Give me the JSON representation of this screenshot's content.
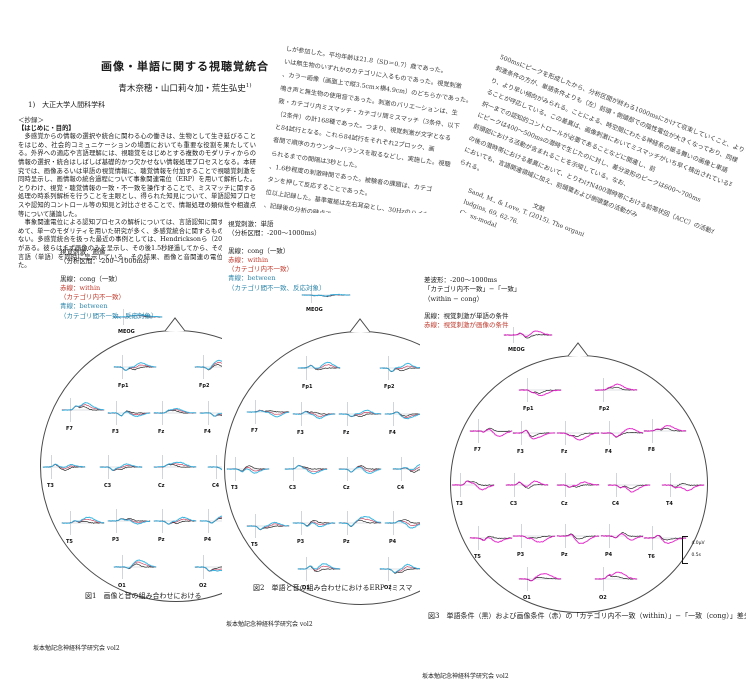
{
  "title": {
    "main": "画像・単語に関する視聴覚統合",
    "authors": "青木奈穂・山口莉々加・荒生弘史",
    "authors_sup": "1)",
    "affiliation": "1)　大正大学人間科学科"
  },
  "abstract": {
    "heading": "＜抄録＞",
    "subheading": "【はじめに・目的】",
    "p1": "　多感覚からの情報の選択や統合に関わる心の働きは、生物として生き延びることをはじめ、社会的コミュニケーションの場面においても重要な役割を果たしている。外界への適応や言語理解には、視聴覚をはじめとする複数のモダリティからの情報の選択・統合はしばしば基礎的かつ欠かせない情報処理プロセスとなる。本研究では、画像あるいは単語の視覚情報に、聴覚情報を付加することで視聴覚刺激を同時呈示し、画情報の統合過程について事象関連電位（ERP）を用いて解析した。とりわけ、視覚・聴覚情報の一致・不一致を操作することで、ミスマッチに関する処理の時系列解析を行うことを主眼とし、得られた知見について、単語認知プロセスや認知的コントロール等の知見と対比させることで、情報処理の類似性や相違点等について議論した。",
    "p2": "　事象関連電位による認知プロセスの解析については、言語認知に関するものも含めて、単一のモダリティを用いた研究が多く、多感覚統合に関するものは比較的少ない。多感覚統合を扱った最近の事例としては、Hendricksonら（2015）のものがある。彼らはまず画像のみを呈示し、その後1.5秒経過してから、その画像および言語（単語）を同時に呈示している。その結果、画像と音関連の電位が確認された。"
  },
  "methods_page": {
    "lines": [
      "しが参加した。平均年齢は21.8（SD＝0.7）歳であった。",
      "いは無生物のいずれかのカテゴリに入るものであった。視覚刺激",
      "、カラー画像（画面上で縦3.5cm×横4.9cm）のどちらかであった。",
      "鳴き声と無生物の使用音であった。刺激のバリエーションは、生",
      "致・カテゴリ内ミスマッチ・カテゴリ間ミスマッチ（3条件、以下",
      "（2条件）の計168種であった。つまり、視覚刺激が文字となる",
      "と84試行となる。これら84試行をそれぞれ2ブロック、画",
      "者間で順序のカウンターバランスを取るなどし、実施した。視聴",
      "られるまでの間隔は3秒とした。",
      "、1.6秒程度の刺激時間であった。被験者の課題は、カテゴ",
      "タンを押して反応することであった。",
      "位以上記録した。基準電極は左右耳朶とし、30Hzのハイカット処理を行った。",
      "、記録後の分析の時点で、300msにお"
    ]
  },
  "discussion_page": {
    "lines": [
      "500msにピークを形成したから、分析区間が終わる1000msにかけて収束していくこと、より速い",
      "刺激条件の方が、単語条件よりも（左）前頭・側頭部での陰性電位が大きくなっており、同様",
      "り、より早い傾向がみられる。ことによる、時空間にわたる神経系の振る舞いの画像と単語",
      "ることが呼応している。この差異は、画像刺激においてミスマッチがいち早く検出されている可能性があること、を",
      "択一までの認知的コントロールが必要であることなどに関連し、前",
      "にピークは400～500msの潜時で生じたのに対し、差分波形のピークは600～700ms",
      "前頭部における活動が含まれることを示唆している。なお、",
      "の後の潜時帯における差異において、とりわけN400潜時帯における前帯状回（ACC）の活動が、ERPに反映されていることを",
      "においても、言語関連領域に加え、前頭葉および側頭葉の活動がみ",
      "られる。"
    ],
    "references_heading": "文献",
    "reference_lines": [
      "Sand, M., & Love, T. (2015). The organi",
      "ludgins, 69, 62-76.",
      "Cross-modal"
    ]
  },
  "legends": {
    "fig1": {
      "stim": "視覚刺激：画像",
      "interval": "（分析区間：-200～1000ms）",
      "black": "黒線：cong（一致）",
      "red1": "赤線：within",
      "red2": "（カテゴリ内不一致）",
      "blue1": "青線：between",
      "blue2": "（カテゴリ間不一致、反応対象）"
    },
    "fig2": {
      "stim": "視覚刺激：単語",
      "interval": "（分析区間：-200～1000ms）",
      "black": "黒線：cong（一致）",
      "red1": "赤線：within",
      "red2": "（カテゴリ内不一致）",
      "blue1": "青線：between",
      "blue2": "（カテゴリ間不一致、反応対象）"
    },
    "fig3": {
      "line1": "差波形：-200～1000ms",
      "line2": "「カテゴリ内不一致」−「一致」",
      "line3": "（within − cong）",
      "black": "黒線：視覚刺激が単語の条件",
      "red": "赤線：視覚刺激が画像の条件"
    }
  },
  "figures": {
    "meog_label": "MEOG",
    "electrodes": [
      "Fp1",
      "Fp2",
      "F7",
      "F3",
      "Fz",
      "F4",
      "F8",
      "T3",
      "C3",
      "Cz",
      "C4",
      "T4",
      "T5",
      "P3",
      "Pz",
      "P4",
      "T6",
      "O1",
      "O2"
    ],
    "fig1": {
      "caption": "図1　画像と音の組み合わせにおける"
    },
    "fig2": {
      "caption": "図2　単語と音の組み合わせにおけるERP（ミスマ"
    },
    "fig3": {
      "caption": "図3　単語条件（黒）および画像条件（赤）の「カテゴリ内不一致（within）」−「一致（cong）」差分波形",
      "scale_amp": "4.0μV",
      "scale_time": "0.5s"
    }
  },
  "footers": {
    "text": "坂本勉記念神経科学研究会 vol2"
  },
  "colors": {
    "trace_black": "#1a1a1a",
    "trace_red": "#c93a57",
    "trace_blue": "#27b0e0",
    "trace_magenta": "#e31ec8",
    "axis_gray": "#b9c4cc",
    "legend_red": "#c0392b",
    "legend_blue": "#2e86ab"
  }
}
